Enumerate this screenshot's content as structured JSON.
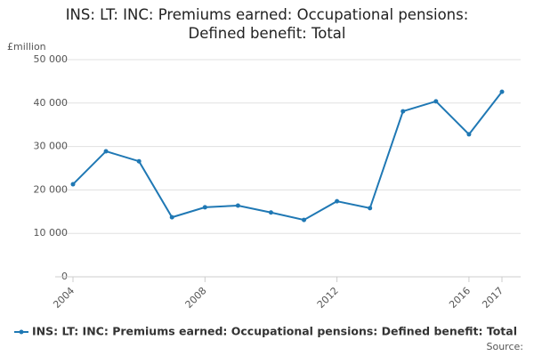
{
  "chart_data": {
    "type": "line",
    "title": "INS: LT: INC: Premiums earned: Occupational pensions: Defined benefit: Total",
    "y_label": "£million",
    "source": "Source:",
    "x": [
      2004,
      2005,
      2006,
      2007,
      2008,
      2009,
      2010,
      2011,
      2012,
      2013,
      2014,
      2015,
      2016,
      2017
    ],
    "series": [
      {
        "name": "INS: LT: INC: Premiums earned: Occupational pensions: Defined benefit: Total",
        "color": "#1f78b4",
        "values": [
          21300,
          28900,
          26600,
          13700,
          16000,
          16400,
          14800,
          13100,
          17400,
          15800,
          38100,
          40400,
          32800,
          42600
        ]
      }
    ],
    "xlim": [
      2004,
      2017
    ],
    "xticks": [
      2004,
      2008,
      2012,
      2016,
      2017
    ],
    "ylim": [
      0,
      50000
    ],
    "yticks": [
      0,
      {
        "value": 10000,
        "label": "10 000"
      },
      {
        "value": 20000,
        "label": "20 000"
      },
      {
        "value": 30000,
        "label": "30 000"
      },
      {
        "value": 40000,
        "label": "40 000"
      },
      {
        "value": 50000,
        "label": "50 000"
      }
    ],
    "grid": true
  }
}
